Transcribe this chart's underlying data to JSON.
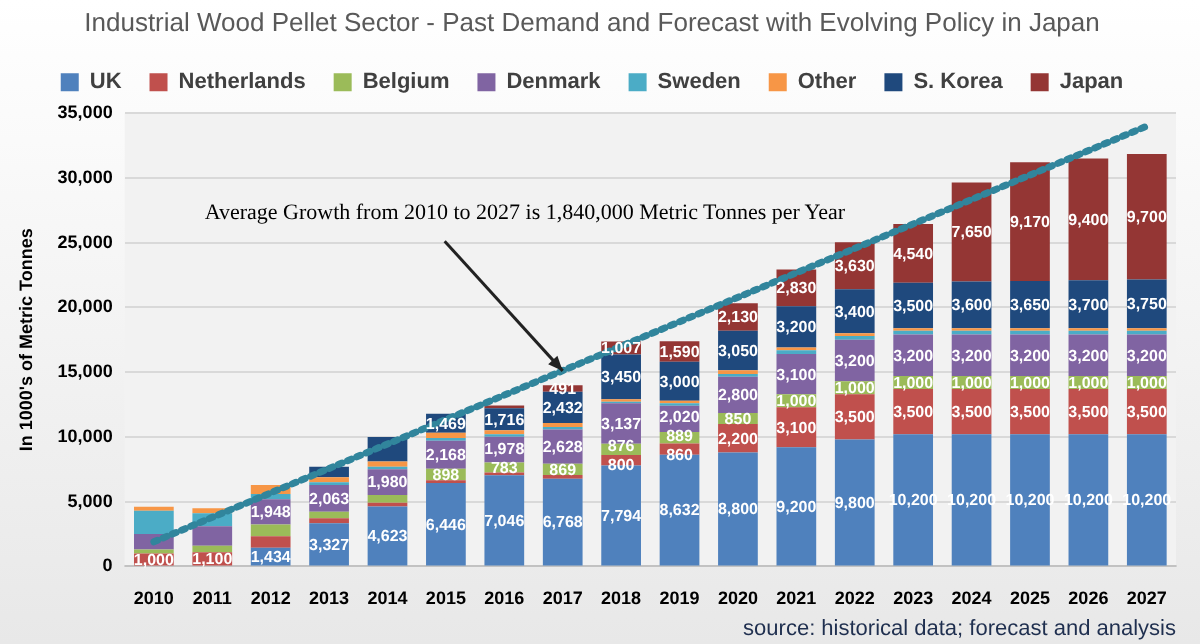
{
  "chart_data": {
    "type": "bar",
    "title": "Industrial Wood Pellet Sector - Past Demand and Forecast with Evolving Policy in Japan",
    "ylabel": "In 1000's of Metric Tonnes",
    "categories": [
      "2010",
      "2011",
      "2012",
      "2013",
      "2014",
      "2015",
      "2016",
      "2017",
      "2018",
      "2019",
      "2020",
      "2021",
      "2022",
      "2023",
      "2024",
      "2025",
      "2026",
      "2027"
    ],
    "stacked": true,
    "grid": "y",
    "legend": "top",
    "ylim": [
      0,
      35000
    ],
    "yticks": [
      {
        "value": 0,
        "label": "0"
      },
      {
        "value": 5000,
        "label": "5,000"
      },
      {
        "value": 10000,
        "label": "10,000"
      },
      {
        "value": 15000,
        "label": "15,000"
      },
      {
        "value": 20000,
        "label": "20,000"
      },
      {
        "value": 25000,
        "label": "25,000"
      },
      {
        "value": 30000,
        "label": "30,000"
      },
      {
        "value": 35000,
        "label": "35,000"
      }
    ],
    "series": [
      {
        "name": "UK",
        "color": "#4f81bd",
        "values": [
          null,
          null,
          1434,
          3327,
          4623,
          6446,
          7046,
          6768,
          7794,
          8632,
          8800,
          9200,
          9800,
          10200,
          10200,
          10200,
          10200,
          10200
        ],
        "value_labels": [
          null,
          null,
          "1,434",
          "3,327",
          "4,623",
          "6,446",
          "7,046",
          "6,768",
          "7,794",
          "8,632",
          "8,800",
          "9,200",
          "9,800",
          "10,200",
          "10,200",
          "10,200",
          "10,200",
          "10,200"
        ]
      },
      {
        "name": "Netherlands",
        "color": "#c0504d",
        "values": [
          1000,
          1100,
          900,
          400,
          300,
          200,
          200,
          300,
          800,
          860,
          2200,
          3100,
          3500,
          3500,
          3500,
          3500,
          3500,
          3500
        ],
        "value_labels": [
          "1,000",
          "1,100",
          null,
          null,
          null,
          null,
          null,
          null,
          "800",
          "860",
          "2,200",
          "3,100",
          "3,500",
          "3,500",
          "3,500",
          "3,500",
          "3,500",
          "3,500"
        ]
      },
      {
        "name": "Belgium",
        "color": "#9bbb59",
        "values": [
          300,
          500,
          900,
          500,
          600,
          898,
          783,
          869,
          876,
          889,
          850,
          1000,
          1000,
          1000,
          1000,
          1000,
          1000,
          1000
        ],
        "value_labels": [
          null,
          null,
          null,
          null,
          null,
          "898",
          "783",
          "869",
          "876",
          "889",
          "850",
          "1,000",
          "1,000",
          "1,000",
          "1,000",
          "1,000",
          "1,000",
          "1,000"
        ]
      },
      {
        "name": "Denmark",
        "color": "#8064a2",
        "values": [
          1200,
          1500,
          1948,
          2063,
          1980,
          2168,
          1978,
          2628,
          3137,
          2020,
          2800,
          3100,
          3200,
          3200,
          3200,
          3200,
          3200,
          3200
        ],
        "value_labels": [
          null,
          null,
          "1,948",
          "2,063",
          "1,980",
          "2,168",
          "1,978",
          "2,628",
          "3,137",
          "2,020",
          "2,800",
          "3,100",
          "3,200",
          "3,200",
          "3,200",
          "3,200",
          "3,200",
          "3,200"
        ]
      },
      {
        "name": "Sweden",
        "color": "#4bacc6",
        "values": [
          1800,
          1000,
          400,
          200,
          200,
          200,
          200,
          200,
          100,
          200,
          200,
          300,
          300,
          300,
          300,
          300,
          300,
          300
        ]
      },
      {
        "name": "Other",
        "color": "#f79646",
        "values": [
          300,
          400,
          700,
          400,
          400,
          400,
          300,
          300,
          200,
          200,
          300,
          200,
          200,
          200,
          200,
          200,
          200,
          200
        ]
      },
      {
        "name": "S. Korea",
        "color": "#1f497d",
        "values": [
          0,
          0,
          0,
          800,
          1900,
          1469,
          1716,
          2432,
          3450,
          3000,
          3050,
          3200,
          3400,
          3500,
          3600,
          3650,
          3700,
          3750
        ],
        "value_labels": [
          null,
          null,
          null,
          null,
          null,
          "1,469",
          "1,716",
          "2,432",
          "3,450",
          "3,000",
          "3,050",
          "3,200",
          "3,400",
          "3,500",
          "3,600",
          "3,650",
          "3,700",
          "3,750"
        ]
      },
      {
        "name": "Japan",
        "color": "#943634",
        "values": [
          0,
          0,
          0,
          0,
          0,
          0,
          200,
          491,
          1007,
          1590,
          2130,
          2830,
          3630,
          4540,
          7650,
          9170,
          9400,
          9700
        ],
        "value_labels": [
          null,
          null,
          null,
          null,
          null,
          null,
          null,
          "491",
          "1,007",
          "1,590",
          "2,130",
          "2,830",
          "3,630",
          "4,540",
          "7,650",
          "9,170",
          "9,400",
          "9,700"
        ]
      },
      {
        "type": "line",
        "color": "#31859c",
        "line_style": "dotted",
        "marker": "none",
        "values": [
          1900,
          null,
          null,
          null,
          null,
          null,
          null,
          null,
          null,
          null,
          null,
          null,
          null,
          null,
          null,
          null,
          null,
          34000
        ]
      }
    ],
    "annotations": [
      {
        "text": "Average Growth from 2010 to 2027 is 1,840,000 Metric Tonnes per Year",
        "x": "2017",
        "y": 15100
      },
      "source: historical data; forecast and analysis"
    ]
  }
}
